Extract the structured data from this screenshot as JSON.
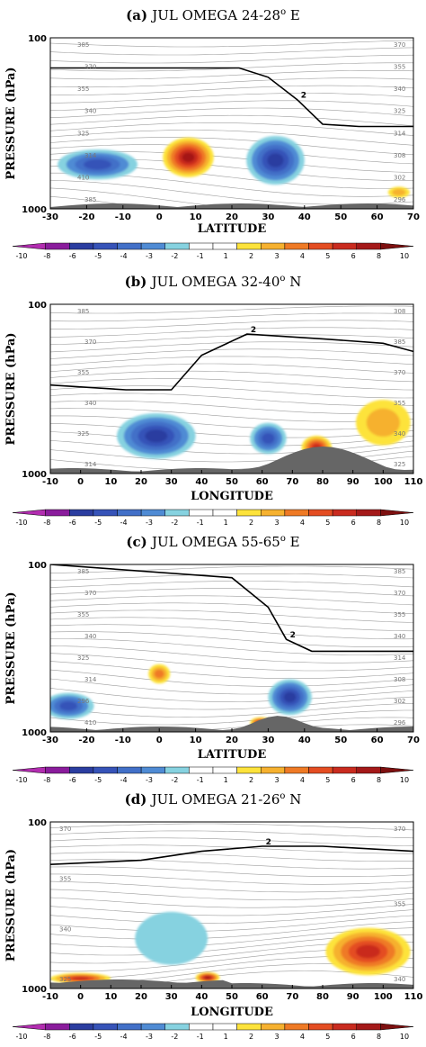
{
  "colors": {
    "scale": [
      "#b22db0",
      "#8a1c9c",
      "#2b3da0",
      "#3653b8",
      "#4270c8",
      "#4f8bd4",
      "#86d2e0",
      "#ffffff",
      "#ffffff",
      "#fde33b",
      "#f6b12f",
      "#ef7a25",
      "#e44d22",
      "#c92b1f",
      "#a41919",
      "#7d1010"
    ],
    "topography": "#666666",
    "contour": "#9e9e9e",
    "tropopause": "#000000"
  },
  "colorbar": {
    "labels": [
      "-10",
      "-8",
      "-6",
      "-5",
      "-4",
      "-3",
      "-2",
      "-1",
      "1",
      "2",
      "3",
      "4",
      "5",
      "6",
      "8",
      "10"
    ]
  },
  "panels": [
    {
      "letter": "(a)",
      "title": "JUL OMEGA 24-28",
      "sup": "o",
      "suffix": " E",
      "ylabel": "PRESSURE  (hPa)",
      "xlabel": "LATITUDE",
      "ytick_top": "100",
      "ytick_bottom": "1000",
      "xticks": [
        "-30",
        "-20",
        "-10",
        "0",
        "10",
        "20",
        "30",
        "40",
        "50",
        "60",
        "70"
      ],
      "trop_label": "2",
      "contour_labels": [
        "385",
        "370",
        "355",
        "340",
        "325",
        "314",
        "410",
        "385",
        "370",
        "355",
        "340",
        "325",
        "314",
        "308",
        "302",
        "296"
      ]
    },
    {
      "letter": "(b)",
      "title": "JUL OMEGA 32-40",
      "sup": "o",
      "suffix": " N",
      "ylabel": "PRESSURE  (hPa)",
      "xlabel": "LONGITUDE",
      "ytick_top": "100",
      "ytick_bottom": "1000",
      "xticks": [
        "-10",
        "0",
        "10",
        "20",
        "30",
        "40",
        "50",
        "60",
        "70",
        "80",
        "90",
        "100",
        "110"
      ],
      "trop_label": "2",
      "contour_labels": [
        "385",
        "370",
        "355",
        "340",
        "325",
        "314",
        "308",
        "385",
        "370",
        "355",
        "340",
        "325"
      ]
    },
    {
      "letter": "(c)",
      "title": "JUL OMEGA 55-65",
      "sup": "o",
      "suffix": " E",
      "ylabel": "PRESSURE  (hPa)",
      "xlabel": "LATITUDE",
      "ytick_top": "100",
      "ytick_bottom": "1000",
      "xticks": [
        "-30",
        "-20",
        "-10",
        "0",
        "10",
        "20",
        "30",
        "40",
        "50",
        "60",
        "70"
      ],
      "trop_label": "2",
      "contour_labels": [
        "385",
        "370",
        "355",
        "340",
        "325",
        "314",
        "296",
        "410",
        "385",
        "370",
        "355",
        "340",
        "314",
        "308",
        "302",
        "296"
      ]
    },
    {
      "letter": "(d)",
      "title": "JUL OMEGA 21-26",
      "sup": "o",
      "suffix": " N",
      "ylabel": "PRESSURE  (hPa)",
      "xlabel": "LONGITUDE",
      "ytick_top": "100",
      "ytick_bottom": "1000",
      "xticks": [
        "-10",
        "0",
        "10",
        "20",
        "30",
        "40",
        "50",
        "60",
        "70",
        "80",
        "90",
        "100",
        "110"
      ],
      "trop_label": "2",
      "contour_labels": [
        "370",
        "355",
        "340",
        "325",
        "370",
        "355",
        "340"
      ]
    }
  ],
  "chart_data": [
    {
      "type": "heatmap",
      "title": "(a) JUL OMEGA 24-28oE",
      "xlabel": "LATITUDE",
      "ylabel": "PRESSURE (hPa)",
      "xlim": [
        -30,
        70
      ],
      "ylim": [
        1000,
        100
      ],
      "levels": [
        -10,
        -8,
        -6,
        -5,
        -4,
        -3,
        -2,
        -1,
        1,
        2,
        3,
        4,
        5,
        6,
        8,
        10
      ],
      "features": [
        {
          "x": -17,
          "p": 550,
          "value": -5,
          "wx": 11,
          "wp": 220
        },
        {
          "x": 8,
          "p": 500,
          "value": 6,
          "wx": 7,
          "wp": 260
        },
        {
          "x": 32,
          "p": 520,
          "value": -6,
          "wx": 8,
          "wp": 330
        },
        {
          "x": 66,
          "p": 800,
          "value": 2,
          "wx": 3,
          "wp": 120
        }
      ],
      "tropopause": [
        [
          -30,
          150
        ],
        [
          22,
          150
        ],
        [
          30,
          170
        ],
        [
          38,
          230
        ],
        [
          45,
          320
        ],
        [
          55,
          330
        ],
        [
          70,
          330
        ]
      ]
    },
    {
      "type": "heatmap",
      "title": "(b) JUL OMEGA 32-40oN",
      "xlabel": "LONGITUDE",
      "ylabel": "PRESSURE (hPa)",
      "xlim": [
        -10,
        110
      ],
      "ylim": [
        1000,
        100
      ],
      "levels": [
        -10,
        -8,
        -6,
        -5,
        -4,
        -3,
        -2,
        -1,
        1,
        2,
        3,
        4,
        5,
        6,
        8,
        10
      ],
      "features": [
        {
          "x": 25,
          "p": 600,
          "value": -6,
          "wx": 13,
          "wp": 360
        },
        {
          "x": 62,
          "p": 620,
          "value": -5,
          "wx": 6,
          "wp": 260
        },
        {
          "x": 78,
          "p": 700,
          "value": 5,
          "wx": 5,
          "wp": 220
        },
        {
          "x": 100,
          "p": 500,
          "value": 2,
          "wx": 9,
          "wp": 300
        }
      ],
      "tropopause": [
        [
          -10,
          300
        ],
        [
          15,
          320
        ],
        [
          30,
          320
        ],
        [
          40,
          200
        ],
        [
          55,
          150
        ],
        [
          80,
          160
        ],
        [
          100,
          170
        ],
        [
          110,
          190
        ]
      ]
    },
    {
      "type": "heatmap",
      "title": "(c) JUL OMEGA 55-65oE",
      "xlabel": "LATITUDE",
      "ylabel": "PRESSURE (hPa)",
      "xlim": [
        -30,
        70
      ],
      "ylim": [
        1000,
        100
      ],
      "levels": [
        -10,
        -8,
        -6,
        -5,
        -4,
        -3,
        -2,
        -1,
        1,
        2,
        3,
        4,
        5,
        6,
        8,
        10
      ],
      "features": [
        {
          "x": -25,
          "p": 700,
          "value": -5,
          "wx": 7,
          "wp": 250
        },
        {
          "x": 0,
          "p": 450,
          "value": 3,
          "wx": 3,
          "wp": 120
        },
        {
          "x": 36,
          "p": 620,
          "value": -6,
          "wx": 6,
          "wp": 300
        },
        {
          "x": 28,
          "p": 880,
          "value": 7,
          "wx": 3,
          "wp": 100
        }
      ],
      "tropopause": [
        [
          -30,
          100
        ],
        [
          20,
          120
        ],
        [
          30,
          180
        ],
        [
          35,
          280
        ],
        [
          42,
          330
        ],
        [
          70,
          330
        ]
      ]
    },
    {
      "type": "heatmap",
      "title": "(d) JUL OMEGA 21-26oN",
      "xlabel": "LONGITUDE",
      "ylabel": "PRESSURE (hPa)",
      "xlim": [
        -10,
        110
      ],
      "ylim": [
        1000,
        100
      ],
      "levels": [
        -10,
        -8,
        -6,
        -5,
        -4,
        -3,
        -2,
        -1,
        1,
        2,
        3,
        4,
        5,
        6,
        8,
        10
      ],
      "features": [
        {
          "x": 0,
          "p": 870,
          "value": 5,
          "wx": 10,
          "wp": 110
        },
        {
          "x": 42,
          "p": 860,
          "value": 6,
          "wx": 4,
          "wp": 130
        },
        {
          "x": 30,
          "p": 500,
          "value": -2,
          "wx": 12,
          "wp": 350
        },
        {
          "x": 95,
          "p": 600,
          "value": 5,
          "wx": 14,
          "wp": 380
        }
      ],
      "tropopause": [
        [
          -10,
          180
        ],
        [
          20,
          170
        ],
        [
          40,
          150
        ],
        [
          60,
          140
        ],
        [
          80,
          140
        ],
        [
          110,
          150
        ]
      ]
    }
  ]
}
